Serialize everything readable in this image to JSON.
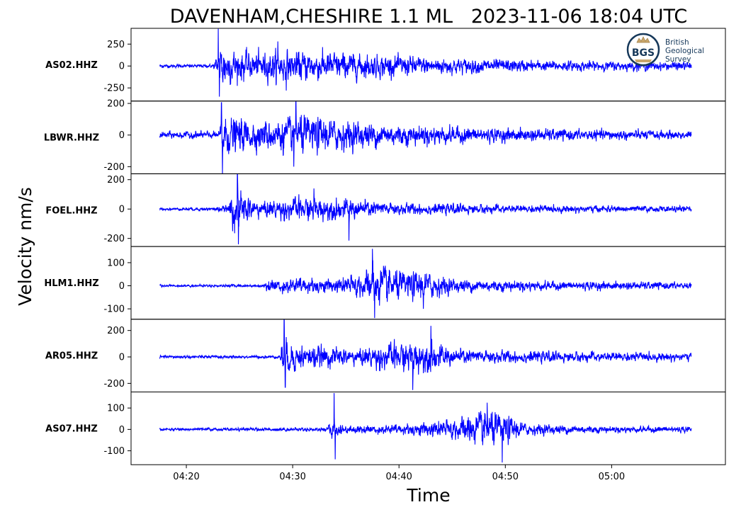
{
  "chart_data": {
    "type": "line",
    "title": "DAVENHAM,CHESHIRE 1.1 ML   2023-11-06 18:04 UTC",
    "xlabel": "Time",
    "ylabel": "Velocity nm/s",
    "x_ticks": [
      "04:20",
      "04:30",
      "04:40",
      "04:50",
      "05:00"
    ],
    "x_tick_minutes": [
      20,
      30,
      40,
      50,
      60
    ],
    "x_range_minutes": [
      14.8,
      70.7
    ],
    "trace_range_minutes": [
      17.5,
      67.5
    ],
    "line_color": "#0000ff",
    "grid": false,
    "logo": {
      "lines": [
        "British",
        "Geological",
        "Survey"
      ],
      "abbr": "BGS",
      "color": "#16385a"
    },
    "series": [
      {
        "name": "AS02.HHZ",
        "ylim": [
          -400,
          430
        ],
        "yticks": [
          250,
          0,
          -250
        ],
        "ytick_labels": [
          "250",
          "0",
          "-250"
        ],
        "noise": 20,
        "envelope": [
          [
            17.5,
            25
          ],
          [
            22.5,
            25
          ],
          [
            22.9,
            160
          ],
          [
            23.3,
            380
          ],
          [
            24.0,
            260
          ],
          [
            26,
            200
          ],
          [
            29,
            230
          ],
          [
            33,
            220
          ],
          [
            38,
            170
          ],
          [
            45,
            120
          ],
          [
            55,
            75
          ],
          [
            67.5,
            60
          ]
        ],
        "peaks": [
          [
            23.0,
            425
          ],
          [
            23.1,
            -350
          ],
          [
            29.4,
            -280
          ],
          [
            28.6,
            280
          ]
        ]
      },
      {
        "name": "LBWR.HHZ",
        "ylim": [
          -245,
          215
        ],
        "yticks": [
          200,
          0,
          -200
        ],
        "ytick_labels": [
          "200",
          "0",
          "-200"
        ],
        "noise": 22,
        "envelope": [
          [
            17.5,
            30
          ],
          [
            23.1,
            30
          ],
          [
            23.3,
            190
          ],
          [
            24.5,
            140
          ],
          [
            27,
            120
          ],
          [
            31,
            160
          ],
          [
            35,
            120
          ],
          [
            40,
            90
          ],
          [
            50,
            55
          ],
          [
            67.5,
            35
          ]
        ],
        "peaks": [
          [
            23.3,
            205
          ],
          [
            23.4,
            -250
          ],
          [
            30.3,
            210
          ],
          [
            30.1,
            -200
          ]
        ]
      },
      {
        "name": "FOEL.HHZ",
        "ylim": [
          -255,
          240
        ],
        "yticks": [
          200,
          0,
          -200
        ],
        "ytick_labels": [
          "200",
          "0",
          "-200"
        ],
        "noise": 8,
        "envelope": [
          [
            17.5,
            10
          ],
          [
            22,
            15
          ],
          [
            24.0,
            30
          ],
          [
            24.2,
            180
          ],
          [
            25,
            150
          ],
          [
            27,
            70
          ],
          [
            31,
            110
          ],
          [
            35,
            90
          ],
          [
            40,
            55
          ],
          [
            50,
            35
          ],
          [
            67.5,
            25
          ]
        ],
        "peaks": [
          [
            24.8,
            235
          ],
          [
            24.9,
            -240
          ],
          [
            32.0,
            140
          ],
          [
            35.3,
            -215
          ]
        ]
      },
      {
        "name": "HLM1.HHZ",
        "ylim": [
          -145,
          170
        ],
        "yticks": [
          100,
          0,
          -100
        ],
        "ytick_labels": [
          "100",
          "0",
          "-100"
        ],
        "noise": 5,
        "envelope": [
          [
            17.5,
            6
          ],
          [
            27.4,
            8
          ],
          [
            27.5,
            35
          ],
          [
            30,
            45
          ],
          [
            34,
            40
          ],
          [
            36.5,
            70
          ],
          [
            38,
            120
          ],
          [
            40,
            80
          ],
          [
            42.5,
            80
          ],
          [
            45,
            40
          ],
          [
            55,
            25
          ],
          [
            67.5,
            20
          ]
        ],
        "peaks": [
          [
            37.5,
            160
          ],
          [
            37.7,
            -140
          ],
          [
            42.3,
            -100
          ]
        ]
      },
      {
        "name": "AR05.HHZ",
        "ylim": [
          -265,
          285
        ],
        "yticks": [
          200,
          0,
          -200
        ],
        "ytick_labels": [
          "200",
          "0",
          "-200"
        ],
        "noise": 12,
        "envelope": [
          [
            17.5,
            15
          ],
          [
            28.8,
            15
          ],
          [
            29.0,
            200
          ],
          [
            30,
            140
          ],
          [
            33,
            100
          ],
          [
            36,
            80
          ],
          [
            40,
            150
          ],
          [
            43,
            150
          ],
          [
            45,
            80
          ],
          [
            55,
            50
          ],
          [
            67.5,
            40
          ]
        ],
        "peaks": [
          [
            29.2,
            280
          ],
          [
            29.3,
            -230
          ],
          [
            43.0,
            235
          ],
          [
            41.3,
            -250
          ]
        ]
      },
      {
        "name": "AS07.HHZ",
        "ylim": [
          -165,
          175
        ],
        "yticks": [
          100,
          0,
          -100
        ],
        "ytick_labels": [
          "100",
          "0",
          "-100"
        ],
        "noise": 6,
        "envelope": [
          [
            17.5,
            8
          ],
          [
            33.3,
            12
          ],
          [
            33.6,
            60
          ],
          [
            35,
            25
          ],
          [
            40,
            30
          ],
          [
            45,
            60
          ],
          [
            48,
            110
          ],
          [
            50,
            90
          ],
          [
            52,
            35
          ],
          [
            60,
            20
          ],
          [
            67.5,
            18
          ]
        ],
        "peaks": [
          [
            33.9,
            170
          ],
          [
            34.0,
            -140
          ],
          [
            49.7,
            -155
          ],
          [
            48.3,
            125
          ]
        ]
      }
    ]
  }
}
